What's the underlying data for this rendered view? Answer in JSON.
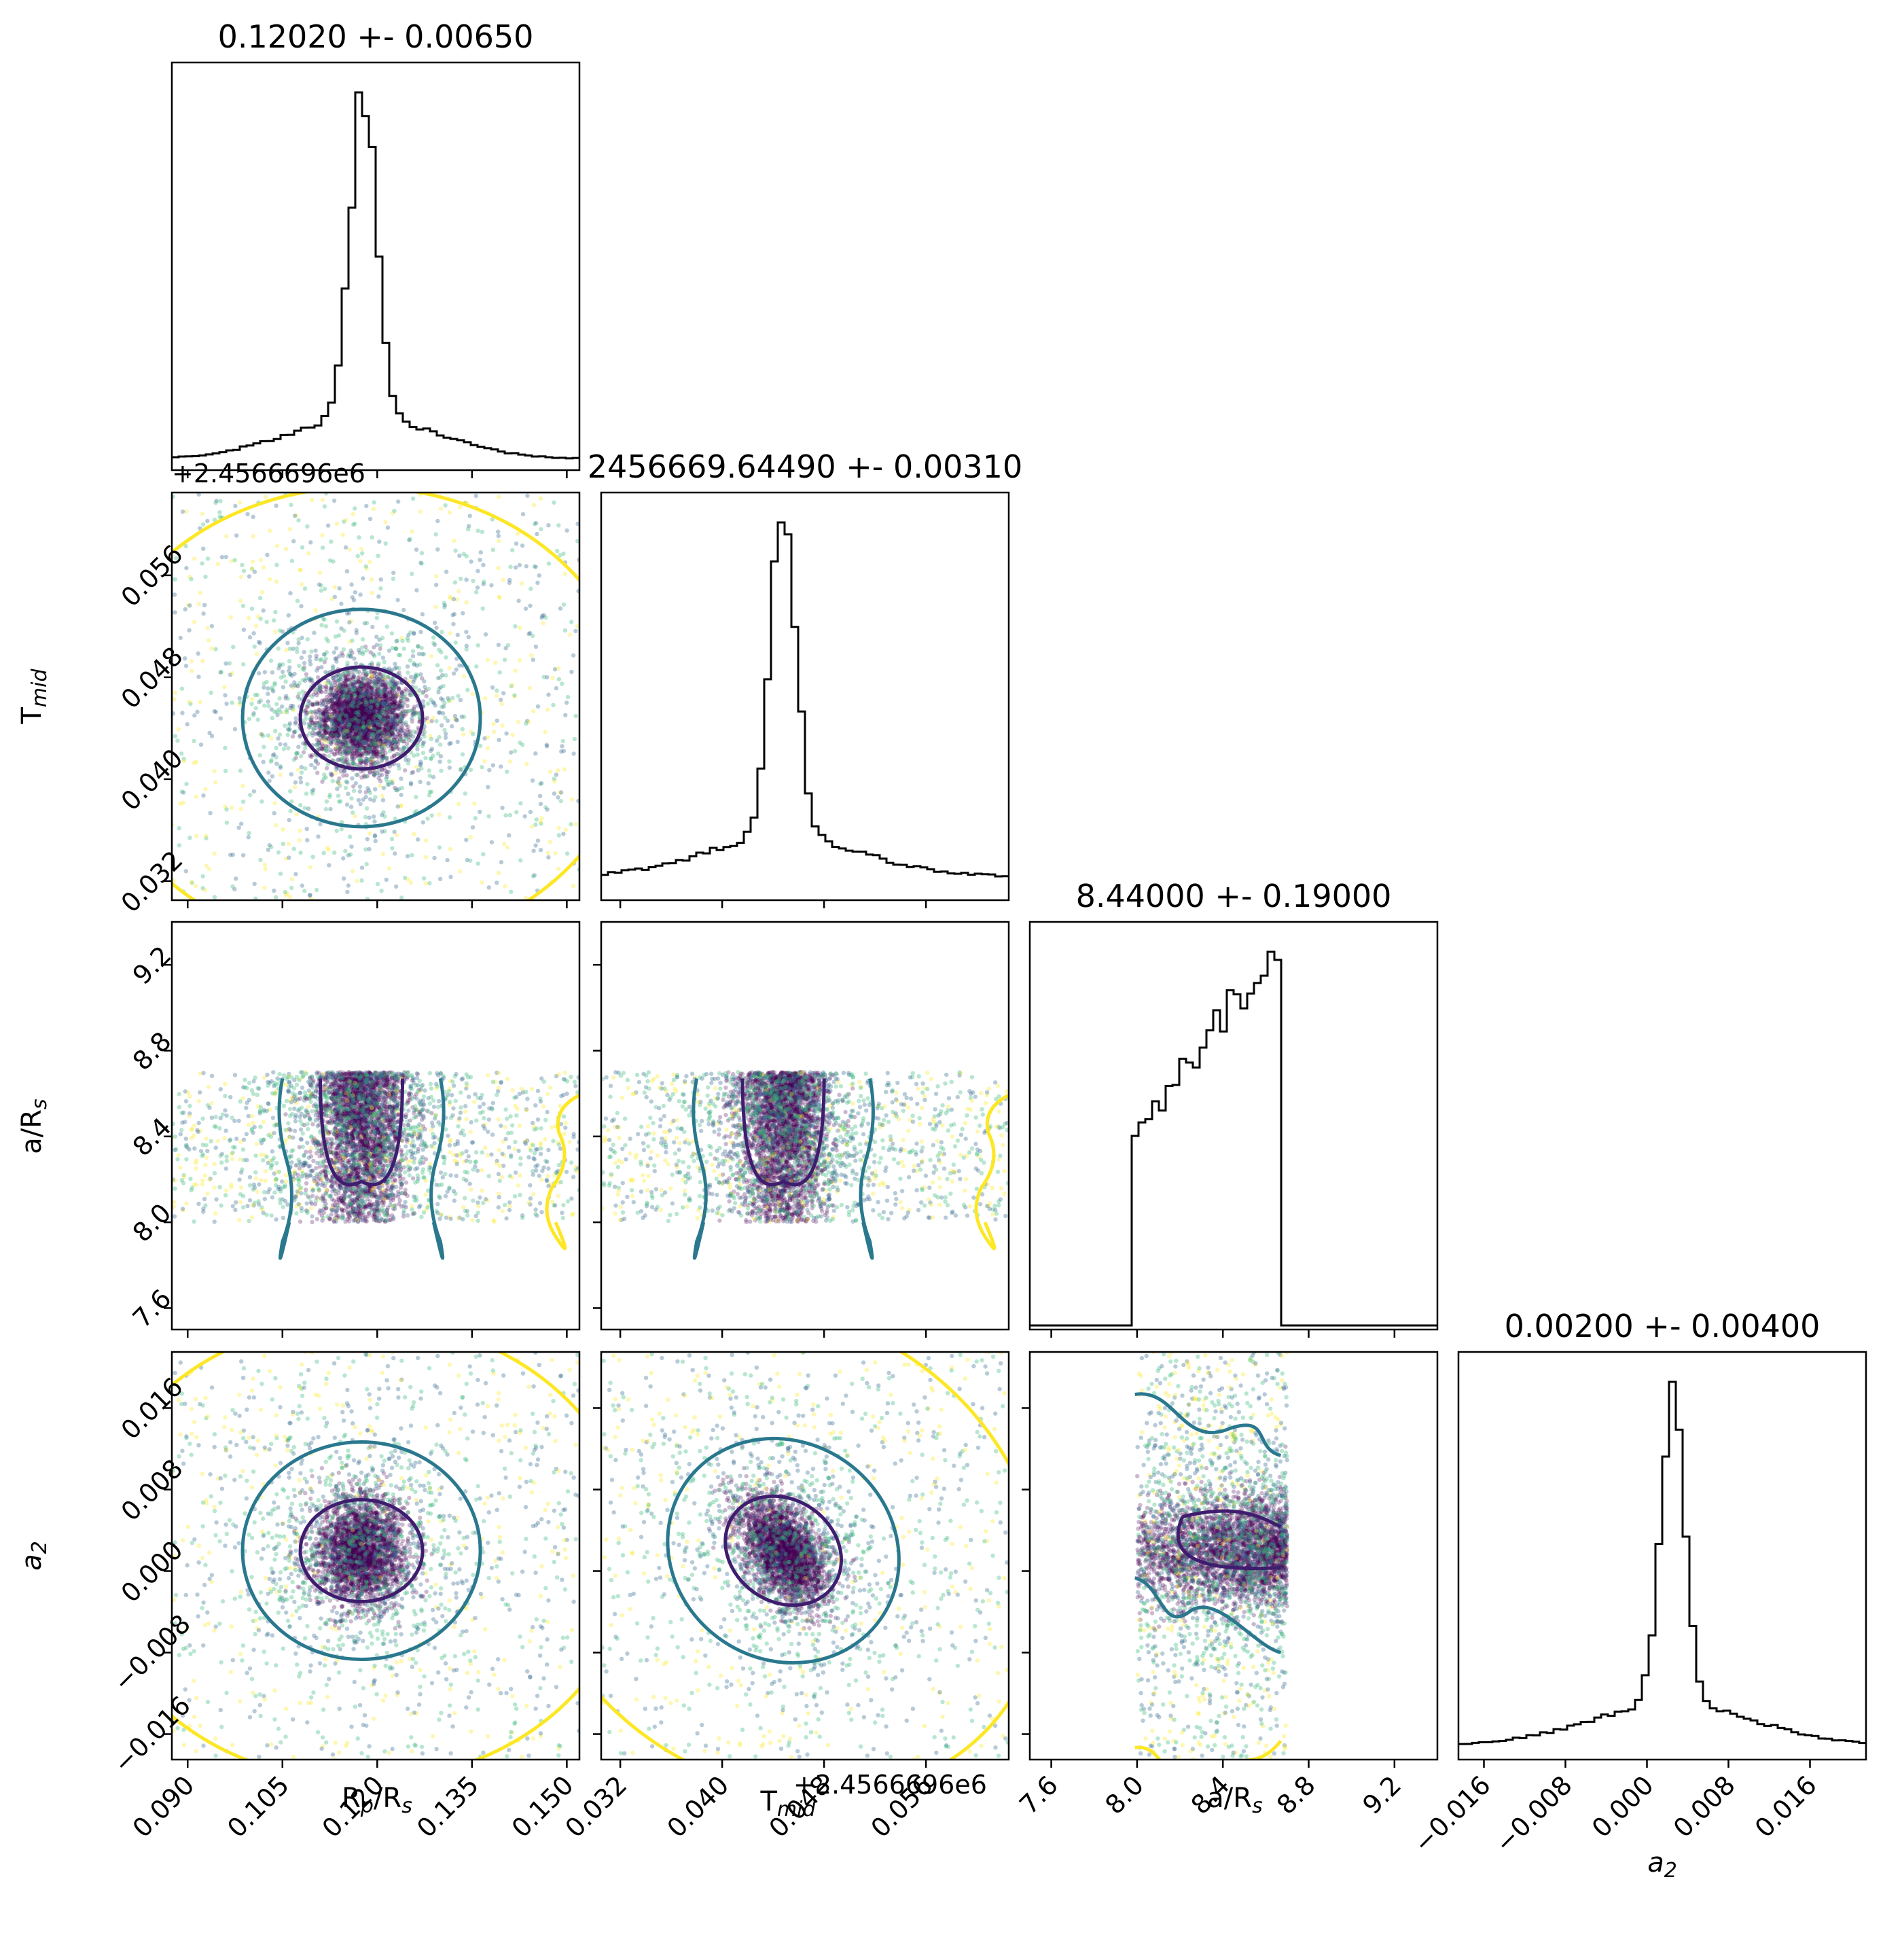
{
  "chart_data": {
    "type": "corner",
    "parameters": [
      {
        "key": "rprs",
        "axis_label": "R_p/R_s",
        "title": "0.12020 +- 0.00650",
        "median": 0.1202,
        "sigma": 0.0065,
        "range": [
          0.0875,
          0.152
        ],
        "ticks": [
          0.09,
          0.105,
          0.12,
          0.135,
          0.15
        ],
        "tick_labels": [
          "0.090",
          "0.105",
          "0.120",
          "0.135",
          "0.150"
        ]
      },
      {
        "key": "tmid",
        "axis_label": "T_mid",
        "title": "2456669.64490 +- 0.00310",
        "median": 2456669.6449,
        "sigma": 0.0031,
        "range": [
          0.0305,
          0.0625
        ],
        "ticks": [
          0.032,
          0.04,
          0.048,
          0.056
        ],
        "tick_labels": [
          "0.032",
          "0.040",
          "0.048",
          "0.056"
        ],
        "offset_text": "+2.4566696e6"
      },
      {
        "key": "ars",
        "axis_label": "a/R_s",
        "title": "8.44000 +- 0.19000",
        "median": 8.44,
        "sigma": 0.19,
        "range": [
          7.5,
          9.4
        ],
        "ticks": [
          7.6,
          8.0,
          8.4,
          8.8,
          9.2
        ],
        "tick_labels": [
          "7.6",
          "8.0",
          "8.4",
          "8.8",
          "9.2"
        ],
        "prior_bounds": [
          8.0,
          8.7
        ]
      },
      {
        "key": "a2",
        "axis_label": "a_2",
        "title": "0.00200 +- 0.00400",
        "median": 0.002,
        "sigma": 0.004,
        "range": [
          -0.0185,
          0.0215
        ],
        "ticks": [
          -0.016,
          -0.008,
          0.0,
          0.008,
          0.016
        ],
        "tick_labels": [
          "−0.016",
          "−0.008",
          "0.000",
          "0.008",
          "0.016"
        ]
      }
    ],
    "colormap": [
      "#440154",
      "#31688e",
      "#35b779",
      "#fde725"
    ],
    "contour_colors": [
      "#3f1d6e",
      "#2a788e",
      "#fde725"
    ],
    "histogram_color": "#000000"
  }
}
